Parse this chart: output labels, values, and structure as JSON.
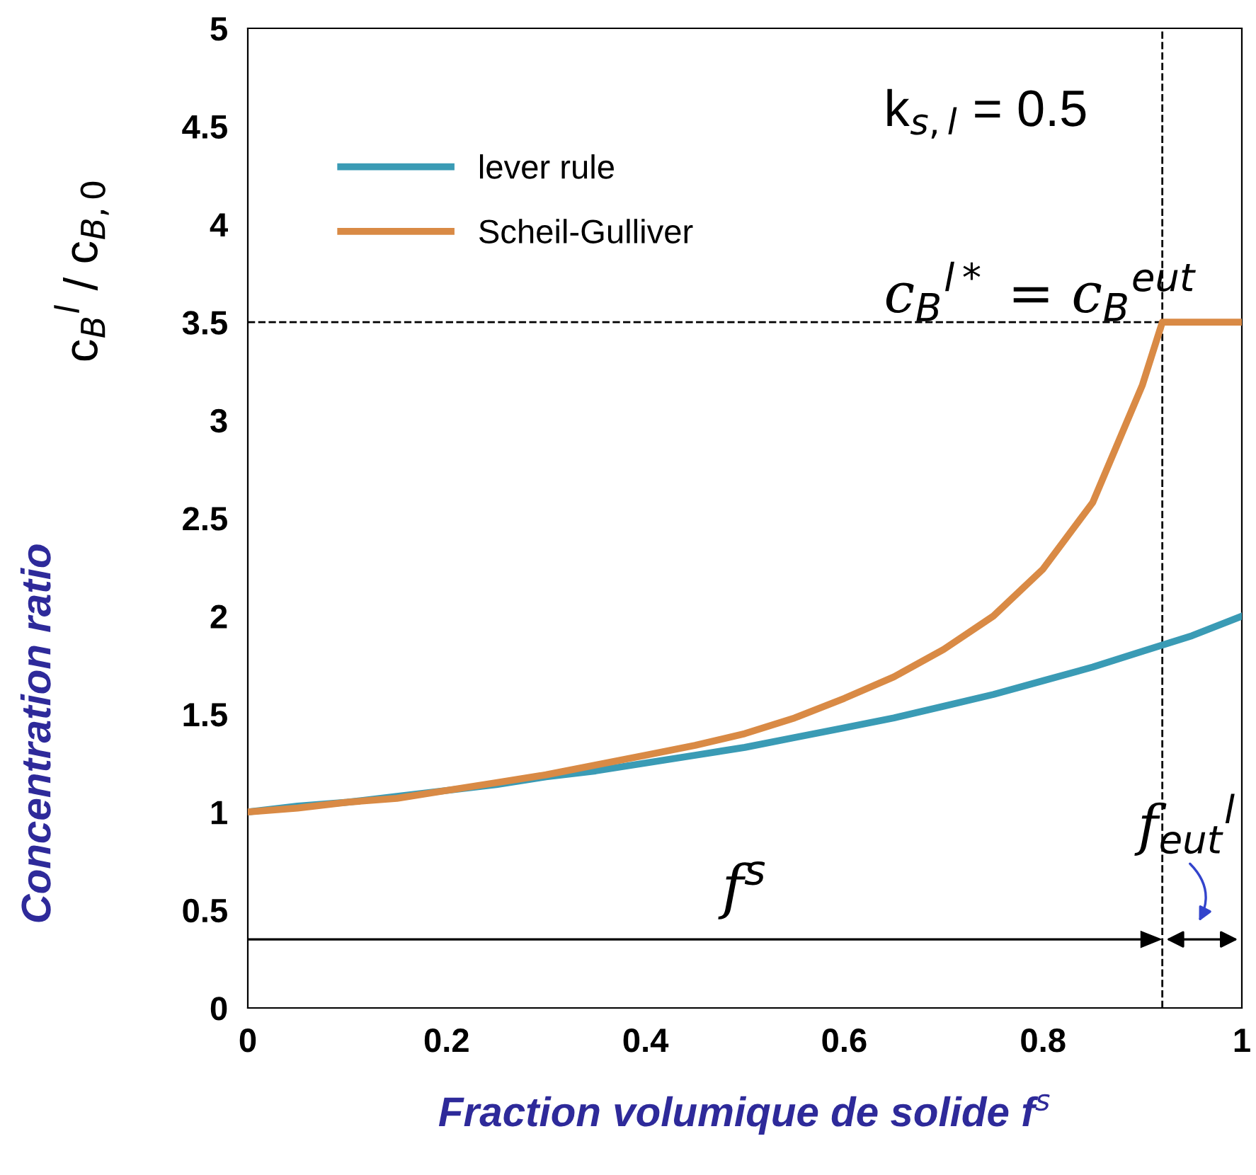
{
  "chart_data": {
    "type": "line",
    "xlabel": "Fraction volumique de solide f$^{s}$",
    "ylabel": "Concentration ratio",
    "xlim": [
      0,
      1
    ],
    "ylim": [
      0,
      5
    ],
    "xticks": [
      0,
      0.2,
      0.4,
      0.6,
      0.8,
      1
    ],
    "yticks": [
      0,
      0.5,
      1,
      1.5,
      2,
      2.5,
      3,
      3.5,
      4,
      4.5,
      5
    ],
    "grid": false,
    "legend": "top left",
    "marker": "none",
    "line_style": "solid",
    "series": [
      {
        "name": "lever rule",
        "color": "#3a9bb5",
        "x": [
          0,
          0.05,
          0.1,
          0.15,
          0.2,
          0.25,
          0.3,
          0.35,
          0.4,
          0.45,
          0.5,
          0.55,
          0.6,
          0.65,
          0.7,
          0.75,
          0.8,
          0.85,
          0.9,
          0.95,
          1
        ],
        "values": [
          1,
          1.03,
          1.05,
          1.08,
          1.11,
          1.14,
          1.18,
          1.21,
          1.25,
          1.29,
          1.33,
          1.38,
          1.43,
          1.48,
          1.54,
          1.6,
          1.67,
          1.74,
          1.82,
          1.9,
          2
        ]
      },
      {
        "name": "Scheil-Gulliver",
        "color": "#d98a45",
        "x": [
          0,
          0.05,
          0.1,
          0.15,
          0.2,
          0.25,
          0.3,
          0.35,
          0.4,
          0.45,
          0.5,
          0.55,
          0.6,
          0.65,
          0.7,
          0.75,
          0.8,
          0.85,
          0.9,
          0.92,
          1
        ],
        "values": [
          1,
          1.02,
          1.05,
          1.07,
          1.11,
          1.15,
          1.19,
          1.24,
          1.29,
          1.34,
          1.4,
          1.48,
          1.58,
          1.69,
          1.83,
          2.0,
          2.24,
          2.58,
          3.18,
          3.5,
          3.5
        ]
      }
    ],
    "ref_lines": [
      {
        "axis": "y",
        "value": 3.5,
        "label": null,
        "color": "#000000",
        "line_style": "dashed"
      },
      {
        "axis": "x",
        "value": 0.92,
        "label": null,
        "color": "#000000",
        "line_style": "dashed"
      }
    ],
    "annotations": [
      "k$_{s,l}$ = 0.5",
      "c$_{B}$$^{l*}$ = c$_{B}$$^{eut}$",
      "f$^{s}$",
      "f$_{eut}$$^{l}$",
      "c$_{B}$$^{l}$ / c$_{B,0}$"
    ]
  }
}
